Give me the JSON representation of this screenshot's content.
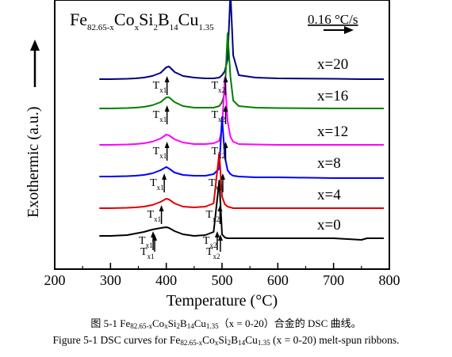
{
  "chart_data": {
    "type": "line",
    "title_parts": {
      "base": "Fe",
      "sub1": "82.65-x",
      "el2": "Co",
      "sub2": "x",
      "el3": "Si",
      "sub3": "2",
      "el4": "B",
      "sub4": "14",
      "el5": "Cu",
      "sub5": "1.35"
    },
    "rate_label": "0.16 °C/s",
    "xlabel": "Temperature (°C)",
    "ylabel": "Exothermic (a.u.)",
    "xlim": [
      200,
      800
    ],
    "xticks": [
      "200",
      "300",
      "400",
      "500",
      "600",
      "700",
      "800"
    ],
    "x_values": [
      280,
      300,
      330,
      345,
      360,
      375,
      390,
      400,
      405,
      415,
      430,
      450,
      470,
      485,
      495,
      500,
      505,
      510,
      515,
      520,
      530,
      560,
      600,
      700,
      750,
      760,
      770,
      790
    ],
    "series": [
      {
        "name": "x=20",
        "color": "#000080",
        "tx1": 390,
        "tx2": 495,
        "y": [
          0,
          0,
          0.5,
          1,
          2,
          4,
          8,
          15,
          16,
          9,
          4,
          2,
          1,
          1,
          2,
          5,
          10,
          25,
          110,
          30,
          5,
          2,
          1,
          0.5,
          0,
          0,
          0,
          0
        ]
      },
      {
        "name": "x=16",
        "color": "#008000",
        "tx1": 390,
        "tx2": 495,
        "y": [
          0,
          0,
          0.5,
          1,
          2,
          4,
          8,
          14,
          14,
          8,
          3,
          1,
          1,
          1,
          3,
          8,
          20,
          95,
          40,
          10,
          3,
          1,
          0.5,
          0,
          0,
          0,
          0,
          0
        ]
      },
      {
        "name": "x=12",
        "color": "#ff00ff",
        "tx1": 390,
        "tx2": 495,
        "y": [
          0,
          0,
          0.5,
          1,
          2,
          4,
          8,
          13,
          12,
          7,
          3,
          1,
          1,
          2,
          5,
          20,
          85,
          30,
          10,
          4,
          1,
          0.5,
          0,
          0,
          0,
          0,
          0,
          0
        ]
      },
      {
        "name": "x=8",
        "color": "#0000ff",
        "tx1": 385,
        "tx2": 490,
        "y": [
          0,
          0,
          0.5,
          1,
          2,
          4,
          8,
          12,
          10,
          5,
          2,
          1,
          1,
          3,
          10,
          75,
          25,
          8,
          3,
          1,
          0,
          -1,
          -1,
          -2,
          -2,
          -2,
          -2,
          -2
        ]
      },
      {
        "name": "x=4",
        "color": "#e00000",
        "tx1": 380,
        "tx2": 485,
        "y": [
          0,
          0,
          0.5,
          1,
          2,
          4,
          8,
          12,
          11,
          6,
          2,
          1,
          2,
          6,
          70,
          15,
          5,
          2,
          1,
          0,
          0,
          0,
          0,
          0,
          0,
          0,
          0,
          0
        ]
      },
      {
        "name": "x=0",
        "color": "#000000",
        "tx1": 365,
        "tx2": 480,
        "y": [
          0,
          0,
          1,
          3,
          5,
          8,
          10,
          11,
          10,
          6,
          2,
          0,
          1,
          5,
          70,
          2,
          -2,
          -3,
          -3,
          -3,
          -3,
          -3,
          -3,
          -3,
          -5,
          -3,
          -3,
          -3
        ]
      }
    ],
    "onset_label": {
      "main": "T",
      "x1": "x1",
      "x2": "x2"
    }
  },
  "caption_cn": {
    "prefix": "图 5-1 Fe",
    "s1": "82.65-x",
    "m1": "Co",
    "s2": "x",
    "m2": "Si",
    "s3": "2",
    "m3": "B",
    "s4": "14",
    "m4": "Cu",
    "s5": "1.35",
    "suffix": "（x = 0-20）合金的 DSC 曲线。"
  },
  "caption_en": {
    "prefix": "Figure 5-1 DSC curves for Fe",
    "s1": "82.65-x",
    "m1": "Co",
    "s2": "x",
    "m2": "Si",
    "s3": "2",
    "m3": "B",
    "s4": "14",
    "m4": "Cu",
    "s5": "1.35",
    "suffix": " (x = 0-20) melt-spun ribbons."
  }
}
